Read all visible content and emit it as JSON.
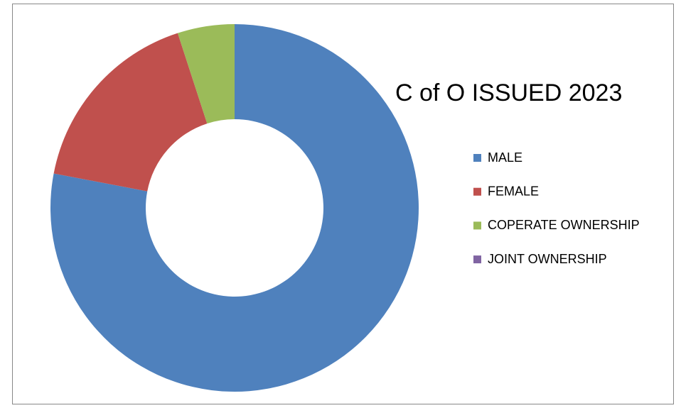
{
  "chart_data": {
    "type": "donut",
    "title": "C of O ISSUED 2023",
    "categories": [
      "MALE",
      "FEMALE",
      "COPERATE OWNERSHIP",
      "JOINT OWNERSHIP"
    ],
    "values": [
      78,
      17,
      5,
      0
    ],
    "colors": [
      "#4f81bd",
      "#c0504d",
      "#9bbb59",
      "#8064a2"
    ],
    "legend": "right"
  }
}
